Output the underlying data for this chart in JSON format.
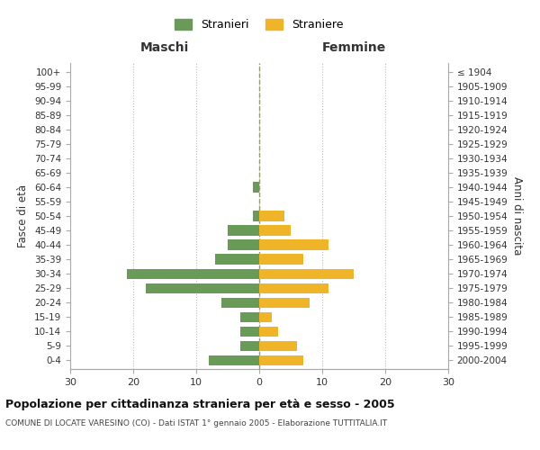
{
  "age_groups": [
    "0-4",
    "5-9",
    "10-14",
    "15-19",
    "20-24",
    "25-29",
    "30-34",
    "35-39",
    "40-44",
    "45-49",
    "50-54",
    "55-59",
    "60-64",
    "65-69",
    "70-74",
    "75-79",
    "80-84",
    "85-89",
    "90-94",
    "95-99",
    "100+"
  ],
  "birth_years": [
    "2000-2004",
    "1995-1999",
    "1990-1994",
    "1985-1989",
    "1980-1984",
    "1975-1979",
    "1970-1974",
    "1965-1969",
    "1960-1964",
    "1955-1959",
    "1950-1954",
    "1945-1949",
    "1940-1944",
    "1935-1939",
    "1930-1934",
    "1925-1929",
    "1920-1924",
    "1915-1919",
    "1910-1914",
    "1905-1909",
    "≤ 1904"
  ],
  "maschi": [
    8,
    3,
    3,
    3,
    6,
    18,
    21,
    7,
    5,
    5,
    1,
    0,
    1,
    0,
    0,
    0,
    0,
    0,
    0,
    0,
    0
  ],
  "femmine": [
    7,
    6,
    3,
    2,
    8,
    11,
    15,
    7,
    11,
    5,
    4,
    0,
    0,
    0,
    0,
    0,
    0,
    0,
    0,
    0,
    0
  ],
  "maschi_color": "#6a9a58",
  "femmine_color": "#f0b429",
  "title": "Popolazione per cittadinanza straniera per età e sesso - 2005",
  "subtitle": "COMUNE DI LOCATE VARESINO (CO) - Dati ISTAT 1° gennaio 2005 - Elaborazione TUTTITALIA.IT",
  "xlabel_left": "Maschi",
  "xlabel_right": "Femmine",
  "ylabel_left": "Fasce di età",
  "ylabel_right": "Anni di nascita",
  "legend_maschi": "Stranieri",
  "legend_femmine": "Straniere",
  "xlim": 30,
  "bg_color": "#ffffff",
  "grid_color": "#bbbbbb",
  "bar_height": 0.7
}
